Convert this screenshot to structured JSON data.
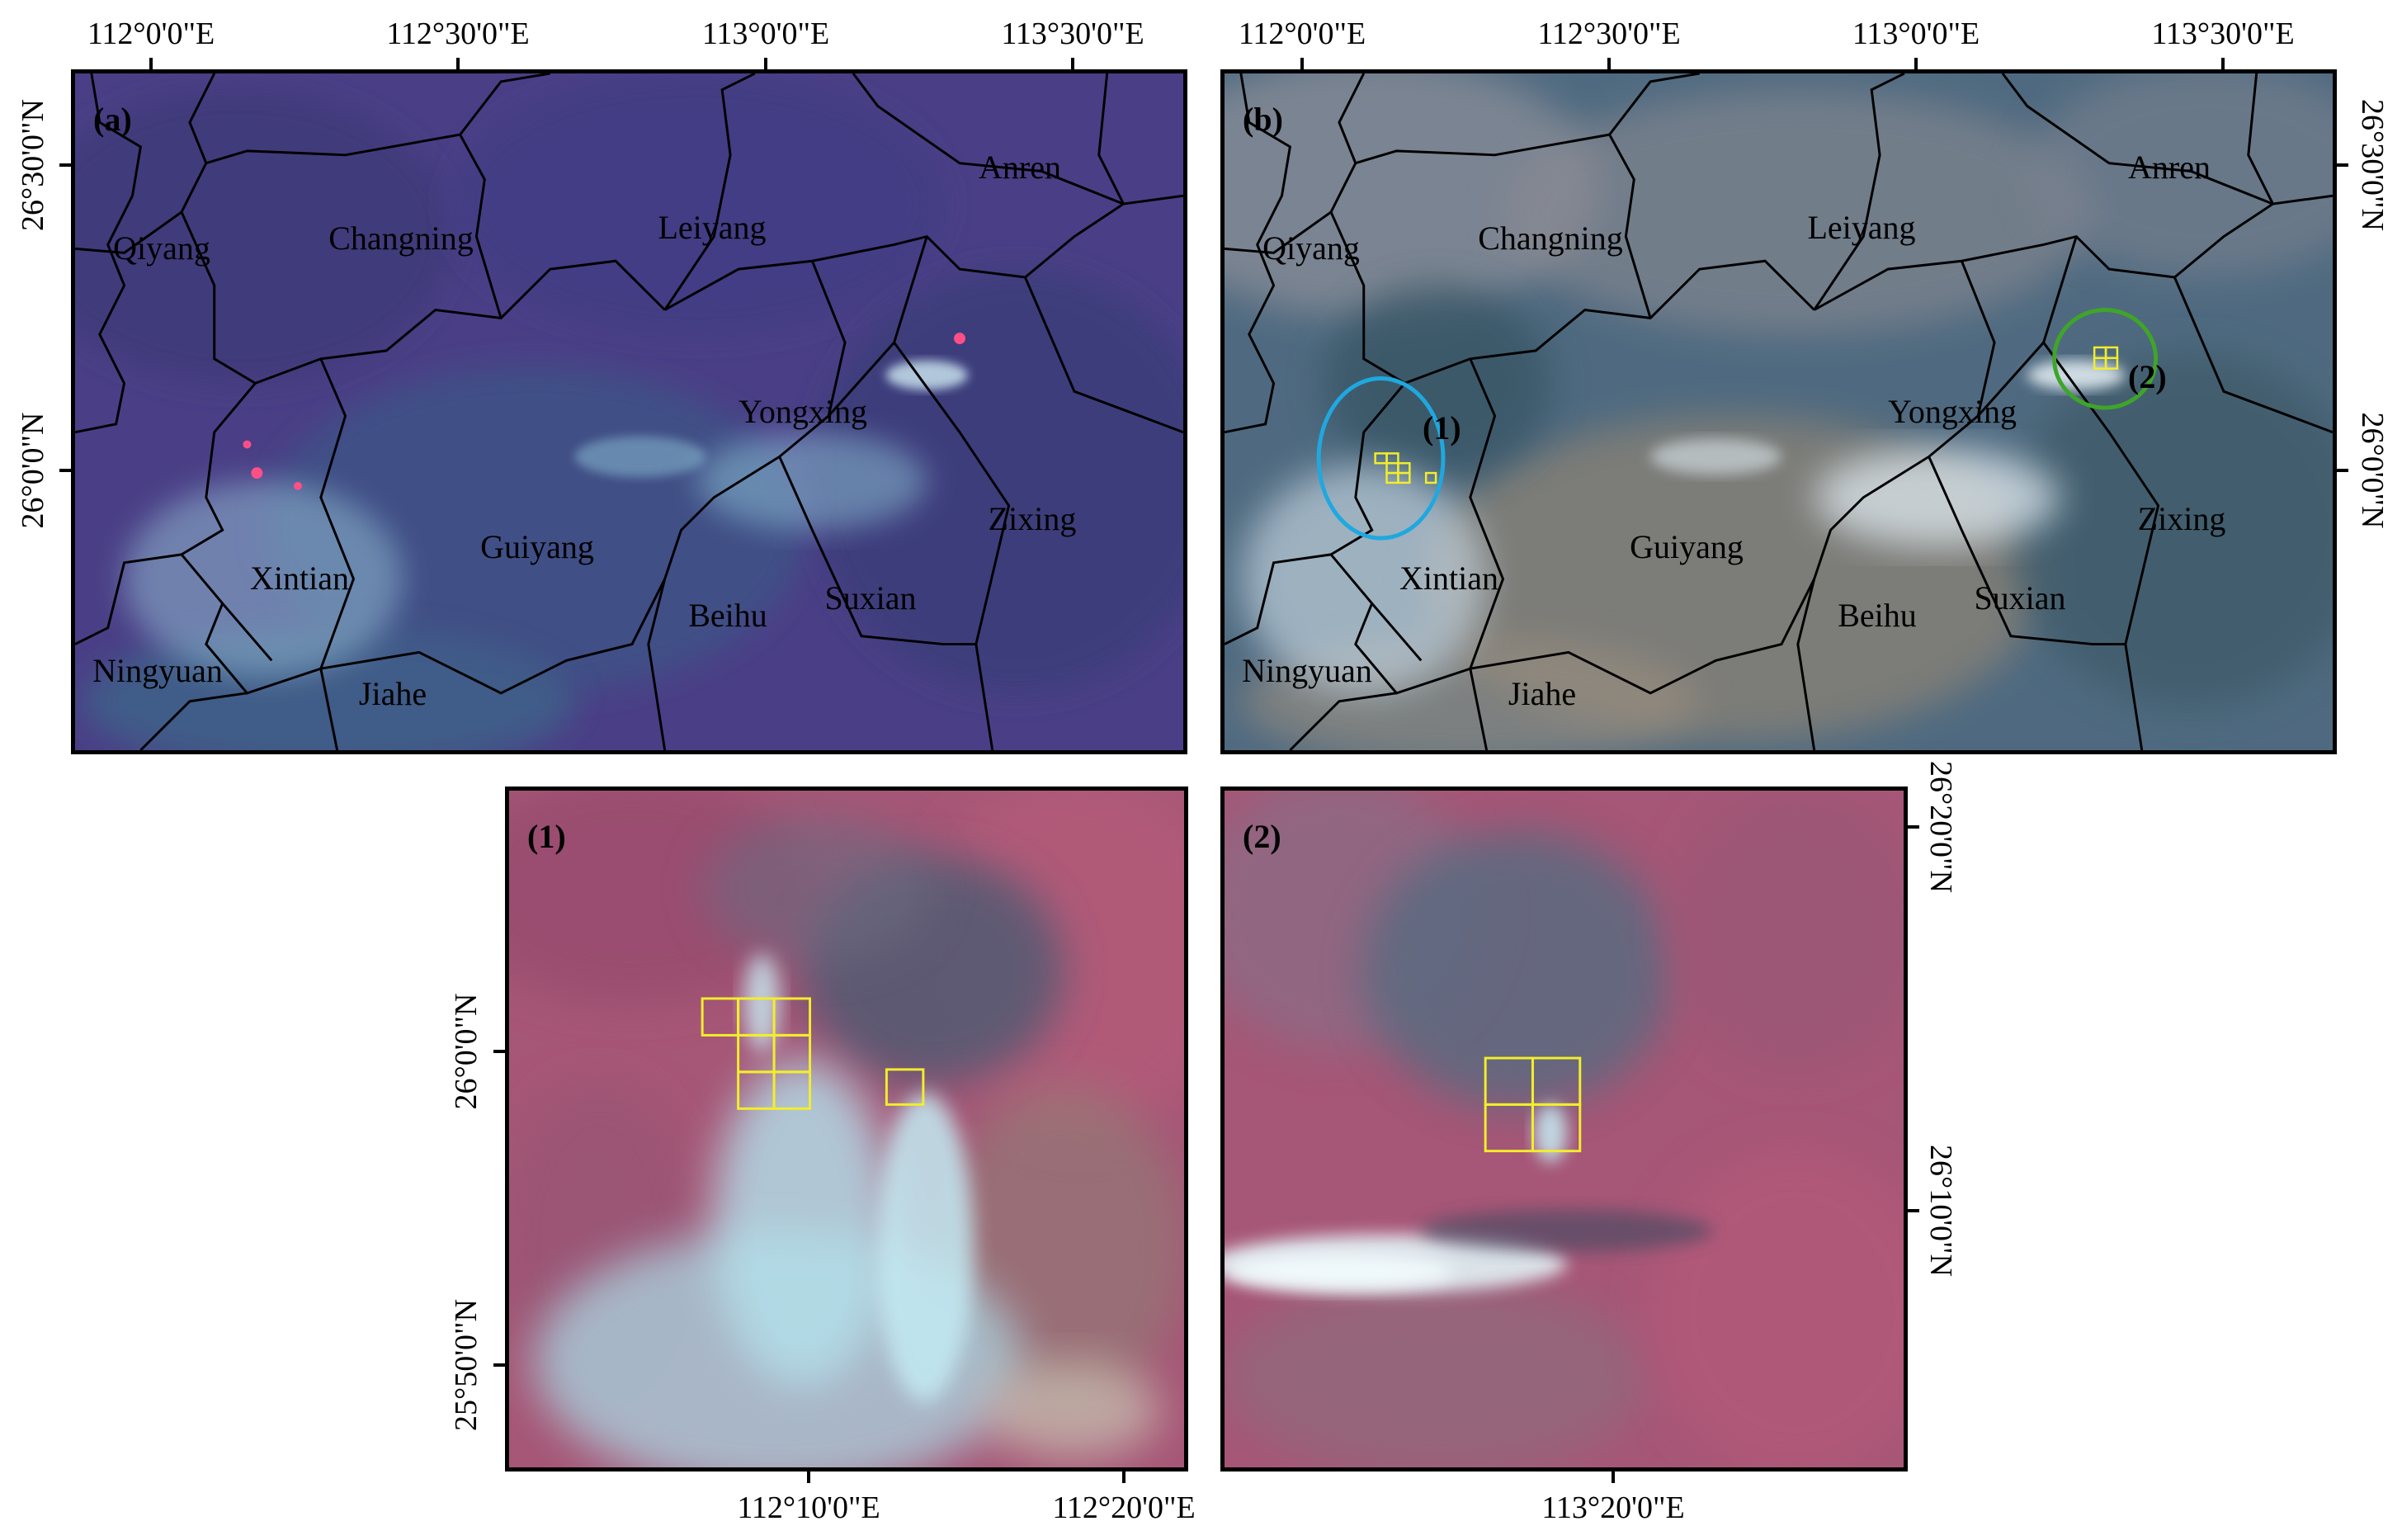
{
  "top_x_ticks": [
    "112°0'0\"E",
    "112°30'0\"E",
    "113°0'0\"E",
    "113°30'0\"E"
  ],
  "top_y_ticks": [
    "26°30'0\"N",
    "26°0'0\"N"
  ],
  "panel_labels": {
    "a": "(a)",
    "b": "(b)",
    "inset1": "(1)",
    "inset2": "(2)"
  },
  "counties": [
    "Qiyang",
    "Changning",
    "Leiyang",
    "Anren",
    "Yongxing",
    "Guiyang",
    "Zixing",
    "Xintian",
    "Suxian",
    "Beihu",
    "Ningyuan",
    "Jiahe"
  ],
  "inset1_x_ticks": [
    "112°10'0\"E",
    "112°20'0\"E"
  ],
  "inset1_y_ticks": [
    "26°0'0\"N",
    "25°50'0\"N"
  ],
  "inset2_x_ticks": [
    "113°20'0\"E"
  ],
  "inset2_y_ticks": [
    "26°20'0\"N",
    "26°10'0\"N"
  ],
  "colors": {
    "panel_a_bg": "#4a3f86",
    "panel_b_bg": "#4f6a80",
    "inset_bg": "#a65676",
    "smoke": "#bfe7ef",
    "fire_pixel": "#ff4f86",
    "fire_box": "#f2ee2a",
    "circle_1": "#1fa8e0",
    "circle_2": "#3fa52a"
  }
}
